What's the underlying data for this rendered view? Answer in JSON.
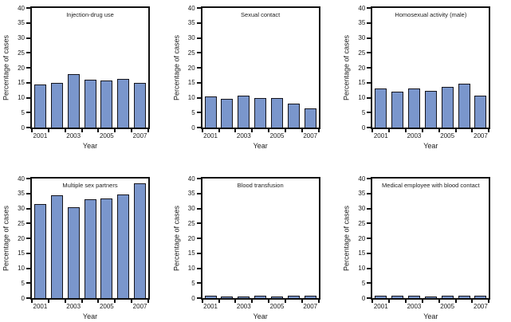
{
  "figure": {
    "background": "#ffffff",
    "layout": "2 rows x 3 columns of bar charts"
  },
  "colors": {
    "bar_fill": "#7a96cc",
    "bar_border": "#15151d",
    "axis": "#111111",
    "text": "#1c1c1c"
  },
  "chart_data": [
    {
      "type": "bar",
      "title": "Injection-drug use",
      "categories": [
        "2001",
        "2002",
        "2003",
        "2004",
        "2005",
        "2006",
        "2007"
      ],
      "values": [
        14.4,
        15.0,
        18.0,
        16.1,
        15.7,
        16.3,
        15.0
      ],
      "xlabel": "Year",
      "ylabel": "Percentage of cases",
      "ylim": [
        0,
        40
      ],
      "ytick_step": 5,
      "xtick_labels_shown": [
        "2001",
        "2003",
        "2005",
        "2007"
      ],
      "grid": false,
      "legend": "none"
    },
    {
      "type": "bar",
      "title": "Sexual contact",
      "categories": [
        "2001",
        "2002",
        "2003",
        "2004",
        "2005",
        "2006",
        "2007"
      ],
      "values": [
        10.4,
        9.6,
        10.8,
        9.9,
        9.9,
        7.9,
        6.4
      ],
      "xlabel": "Year",
      "ylabel": "Percentage of cases",
      "ylim": [
        0,
        40
      ],
      "ytick_step": 5,
      "xtick_labels_shown": [
        "2001",
        "2003",
        "2005",
        "2007"
      ],
      "grid": false,
      "legend": "none"
    },
    {
      "type": "bar",
      "title": "Homosexual activity (male)",
      "categories": [
        "2001",
        "2002",
        "2003",
        "2004",
        "2005",
        "2006",
        "2007"
      ],
      "values": [
        13.1,
        12.0,
        13.2,
        12.2,
        13.6,
        14.7,
        10.6
      ],
      "xlabel": "Year",
      "ylabel": "Percentage of cases",
      "ylim": [
        0,
        40
      ],
      "ytick_step": 5,
      "xtick_labels_shown": [
        "2001",
        "2003",
        "2005",
        "2007"
      ],
      "grid": false,
      "legend": "none"
    },
    {
      "type": "bar",
      "title": "Multiple sex partners",
      "categories": [
        "2001",
        "2002",
        "2003",
        "2004",
        "2005",
        "2006",
        "2007"
      ],
      "values": [
        31.4,
        34.4,
        30.3,
        33.2,
        33.3,
        34.6,
        38.3
      ],
      "xlabel": "Year",
      "ylabel": "Percentage of cases",
      "ylim": [
        0,
        40
      ],
      "ytick_step": 5,
      "xtick_labels_shown": [
        "2001",
        "2003",
        "2005",
        "2007"
      ],
      "grid": false,
      "legend": "none"
    },
    {
      "type": "bar",
      "title": "Blood transfusion",
      "categories": [
        "2001",
        "2002",
        "2003",
        "2004",
        "2005",
        "2006",
        "2007"
      ],
      "values": [
        0.9,
        0.6,
        0.6,
        0.9,
        0.5,
        0.8,
        0.8
      ],
      "xlabel": "Year",
      "ylabel": "Percentage of cases",
      "ylim": [
        0,
        40
      ],
      "ytick_step": 5,
      "xtick_labels_shown": [
        "2001",
        "2003",
        "2005",
        "2007"
      ],
      "grid": false,
      "legend": "none"
    },
    {
      "type": "bar",
      "title": "Medical employee with blood contact",
      "categories": [
        "2001",
        "2002",
        "2003",
        "2004",
        "2005",
        "2006",
        "2007"
      ],
      "values": [
        0.9,
        0.7,
        0.7,
        0.6,
        0.9,
        0.7,
        0.7
      ],
      "xlabel": "Year",
      "ylabel": "Percentage of cases",
      "ylim": [
        0,
        40
      ],
      "ytick_step": 5,
      "xtick_labels_shown": [
        "2001",
        "2003",
        "2005",
        "2007"
      ],
      "grid": false,
      "legend": "none"
    }
  ]
}
